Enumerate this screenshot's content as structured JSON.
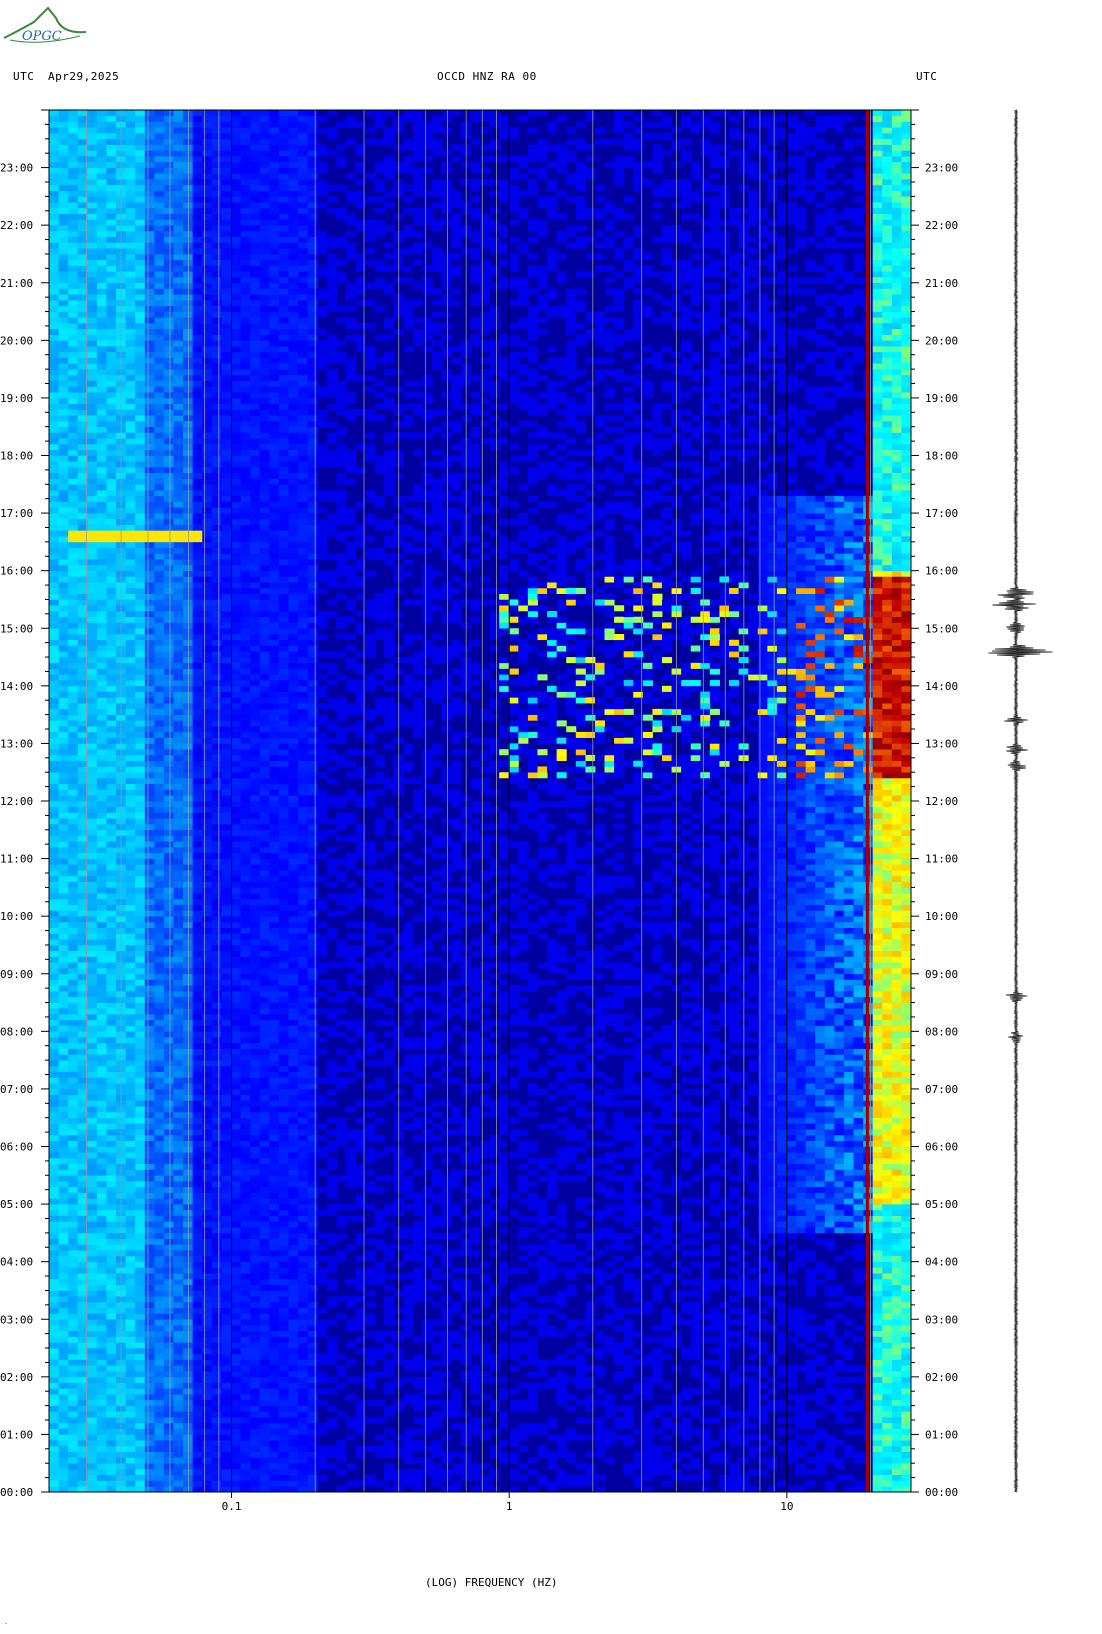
{
  "logo": {
    "text": "OPGC",
    "icon": "volcano-logo-icon"
  },
  "header": {
    "left_label": "UTC",
    "date": "Apr29,2025",
    "center_title": "OCCD HNZ RA 00",
    "right_label": "UTC"
  },
  "chart_data": {
    "type": "heatmap",
    "title": "OCCD HNZ RA 00",
    "xlabel": "(LOG) FREQUENCY (HZ)",
    "ylabel": "",
    "x_scale": "log",
    "xlim": [
      0.022,
      28
    ],
    "x_tick_labels": [
      {
        "value": 0.1,
        "label": "0.1"
      },
      {
        "value": 1,
        "label": "1"
      },
      {
        "value": 10,
        "label": "10"
      }
    ],
    "y_tick_labels": [
      "00:00",
      "01:00",
      "02:00",
      "03:00",
      "04:00",
      "05:00",
      "06:00",
      "07:00",
      "08:00",
      "09:00",
      "10:00",
      "11:00",
      "12:00",
      "13:00",
      "14:00",
      "15:00",
      "16:00",
      "17:00",
      "18:00",
      "19:00",
      "20:00",
      "21:00",
      "22:00",
      "23:00"
    ],
    "ylim_hours": [
      0,
      24
    ],
    "grid": true,
    "colormap": [
      "#0000a0",
      "#0000ff",
      "#00a0ff",
      "#00ffff",
      "#ffff00",
      "#ff8000",
      "#c00000",
      "#800000"
    ],
    "features": [
      {
        "kind": "persistent_line",
        "freq_hz": 19.5,
        "hours": [
          0,
          24
        ],
        "intensity": "dark-red"
      },
      {
        "kind": "band",
        "freq_hz": [
          20.5,
          28
        ],
        "hours": [
          0,
          24
        ],
        "intensity": "cyan-yellow"
      },
      {
        "kind": "event",
        "freq_hz": [
          0.025,
          0.08
        ],
        "hours": [
          16.5,
          16.9
        ],
        "intensity": "yellow"
      },
      {
        "kind": "event_cluster",
        "freq_hz": [
          0.9,
          28
        ],
        "hours": [
          12.4,
          15.9
        ],
        "intensity": "yellow-red"
      },
      {
        "kind": "noise",
        "freq_hz": [
          8,
          28
        ],
        "hours": [
          5,
          17
        ],
        "intensity": "cyan"
      }
    ]
  },
  "trace": {
    "label": "seismogram",
    "events_hours": [
      15.6,
      15.4,
      15.0,
      14.6,
      13.4,
      12.9,
      12.6,
      8.6,
      7.9
    ]
  }
}
